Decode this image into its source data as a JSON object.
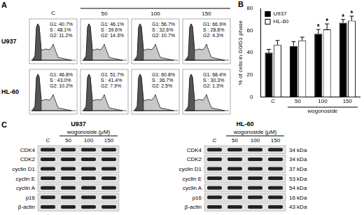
{
  "panel_a": {
    "label": "A",
    "control_label": "C",
    "doses": [
      "50",
      "100",
      "150"
    ],
    "rows": [
      {
        "name": "U937",
        "cells": [
          [
            "G1: 40.7%",
            "S : 48.1%",
            "G2: 11.2%"
          ],
          [
            "G1: 46.1%",
            "S : 39.6%",
            "G2: 14.3%"
          ],
          [
            "G1: 56.7%",
            "S : 32.6%",
            "G2: 10.7%"
          ],
          [
            "G1: 66.9%",
            "S : 28.8%",
            "G2: 4.3%"
          ]
        ]
      },
      {
        "name": "HL-60",
        "cells": [
          [
            "G1: 46.8%",
            "S : 43.0%",
            "G2: 10.2%"
          ],
          [
            "G1: 51.7%",
            "S : 41.4%",
            "G2: 7.9%"
          ],
          [
            "G1: 60.8%",
            "S : 36.7%",
            "G2: 2.5%"
          ],
          [
            "G1: 68.4%",
            "S : 30.3%",
            "G2: 1.3%"
          ]
        ]
      }
    ]
  },
  "chart_data": {
    "label": "B",
    "type": "bar",
    "categories": [
      "C",
      "50",
      "100",
      "150"
    ],
    "category_group": "wogonoside",
    "y_label": "% of cells in G0/G1 phase",
    "ylim": [
      0,
      80
    ],
    "yticks": [
      0,
      20,
      40,
      60,
      80
    ],
    "grid": false,
    "legend": "upper left",
    "series": [
      {
        "name": "U937",
        "color": "#000000",
        "values": [
          40,
          46,
          57,
          67
        ],
        "errors": [
          3,
          4,
          4,
          3
        ],
        "significance": [
          null,
          null,
          "*",
          "*"
        ]
      },
      {
        "name": "HL-60",
        "color": "#ffffff",
        "values": [
          47,
          51,
          61,
          69
        ],
        "errors": [
          4,
          3,
          5,
          4
        ],
        "significance": [
          null,
          null,
          "*",
          "*"
        ]
      }
    ]
  },
  "panel_c": {
    "label": "C",
    "group_label": "wogonoside (μM)",
    "control_label": "C",
    "doses": [
      "50",
      "100",
      "150"
    ],
    "blots": [
      {
        "title": "U937",
        "rows": [
          "CDK4",
          "CDK2",
          "cyclin D1",
          "cyclin E",
          "cyclin A",
          "p16",
          "β-actin"
        ]
      },
      {
        "title": "HL-60",
        "rows": [
          "CDK4",
          "CDK2",
          "cyclin D1",
          "cyclin E",
          "cyclin A",
          "p16",
          "β-actin"
        ],
        "sizes": [
          "34 kDa",
          "34 kDa",
          "37 kDa",
          "53 kDa",
          "54 kDa",
          "16 kDa",
          "43 kDa"
        ]
      }
    ]
  }
}
